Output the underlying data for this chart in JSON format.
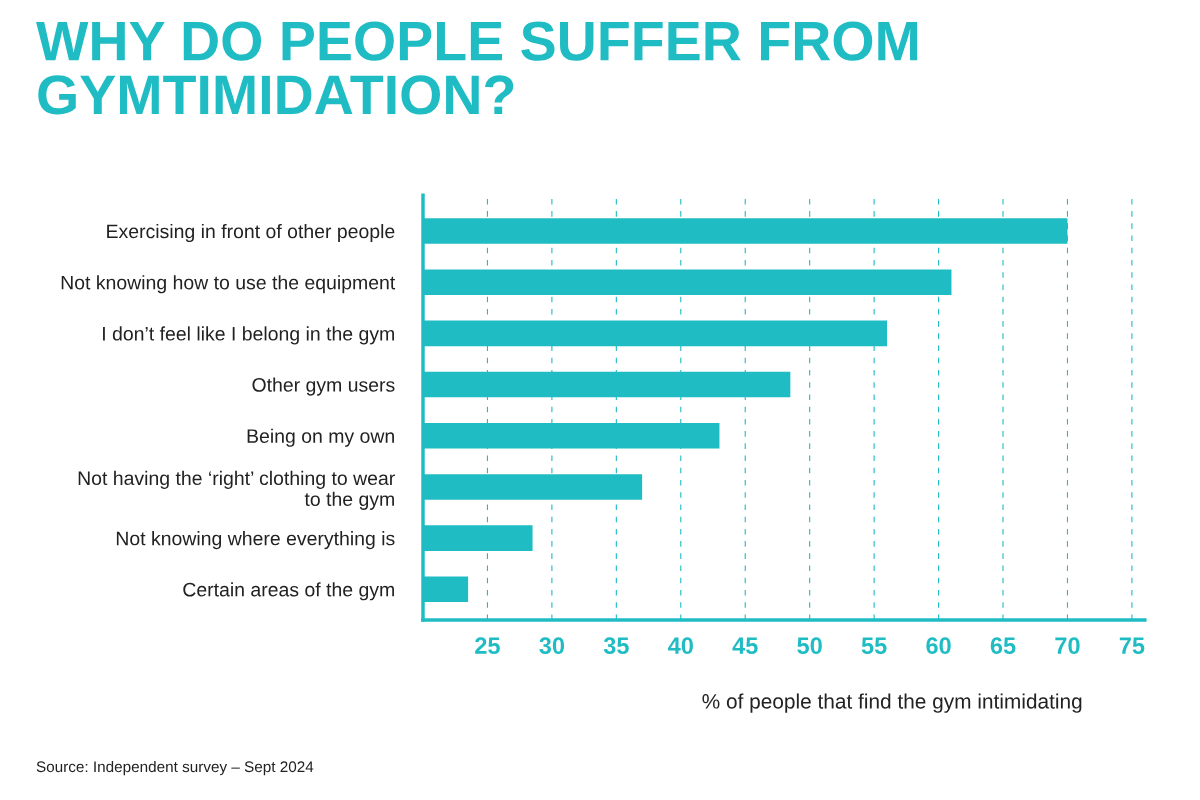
{
  "chart_data": {
    "type": "bar",
    "orientation": "horizontal",
    "title": "WHY DO PEOPLE SUFFER FROM\nGYMTIMIDATION?",
    "categories": [
      "Exercising in front of other people",
      "Not knowing how to use the equipment",
      "I don’t feel like I belong in the gym",
      "Other gym users",
      "Being on my own",
      "Not having the ‘right’ clothing to wear\nto the gym",
      "Not knowing where everything is",
      "Certain areas of the gym"
    ],
    "values": [
      70,
      61,
      56,
      48.5,
      43,
      37,
      28.5,
      23.5
    ],
    "color": "#1fbcc4",
    "xlim": [
      20,
      76
    ],
    "xticks": [
      25,
      30,
      35,
      40,
      45,
      50,
      55,
      60,
      65,
      70,
      75
    ],
    "xlabel": "% of people that find the gym intimidating",
    "grid": "x",
    "annotations": [
      "Source: Independent survey – Sept 2024"
    ]
  }
}
